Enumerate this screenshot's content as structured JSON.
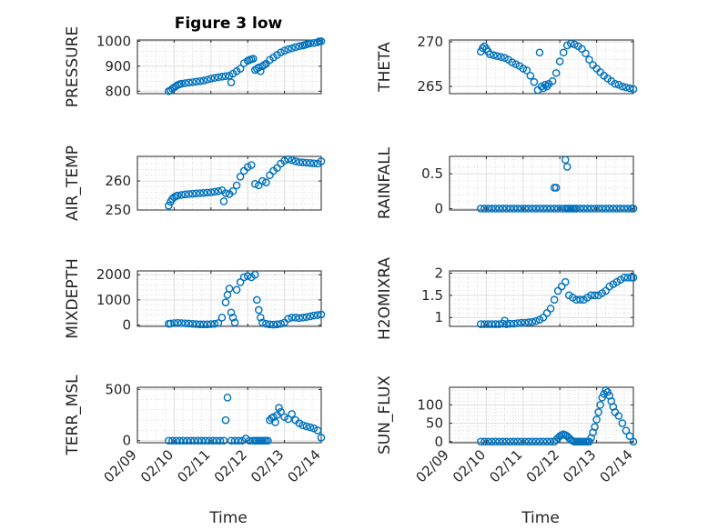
{
  "figure": {
    "title": "Figure 3 low",
    "xlabel": "Time"
  },
  "colors": {
    "marker": "#0072BD",
    "axes": "#262626",
    "grid_major": "#dfdfdf",
    "grid_minor": "#cfcfcf"
  },
  "chart_data": [
    {
      "type": "scatter",
      "ylabel": "PRESSURE",
      "xlim": [
        0,
        5
      ],
      "ylim": [
        790,
        1005
      ],
      "yticks": [
        800,
        900,
        1000
      ],
      "xticklabels": [],
      "x": [
        0.85,
        0.9,
        0.95,
        1.0,
        1.05,
        1.1,
        1.15,
        1.2,
        1.3,
        1.4,
        1.5,
        1.6,
        1.7,
        1.8,
        1.9,
        2.0,
        2.1,
        2.2,
        2.3,
        2.4,
        2.5,
        2.55,
        2.6,
        2.7,
        2.8,
        2.9,
        3.0,
        3.05,
        3.1,
        3.15,
        3.2,
        3.25,
        3.3,
        3.35,
        3.4,
        3.45,
        3.5,
        3.6,
        3.7,
        3.8,
        3.9,
        4.0,
        4.1,
        4.2,
        4.3,
        4.4,
        4.5,
        4.55,
        4.6,
        4.65,
        4.7,
        4.8,
        4.9,
        4.95,
        5.0
      ],
      "y": [
        800,
        803,
        810,
        815,
        820,
        825,
        828,
        830,
        832,
        834,
        836,
        838,
        840,
        842,
        846,
        850,
        853,
        856,
        858,
        860,
        862,
        835,
        870,
        880,
        890,
        912,
        922,
        925,
        928,
        930,
        885,
        890,
        895,
        880,
        900,
        905,
        910,
        925,
        935,
        945,
        955,
        962,
        968,
        972,
        976,
        980,
        983,
        985,
        988,
        990,
        992,
        993,
        996,
        1000,
        1000
      ]
    },
    {
      "type": "scatter",
      "ylabel": "THETA",
      "xlim": [
        0,
        5
      ],
      "ylim": [
        264.2,
        270.2
      ],
      "yticks": [
        265,
        270
      ],
      "xticklabels": [],
      "x": [
        0.85,
        0.9,
        0.95,
        1.0,
        1.05,
        1.1,
        1.2,
        1.3,
        1.4,
        1.5,
        1.6,
        1.7,
        1.8,
        1.9,
        2.0,
        2.1,
        2.2,
        2.3,
        2.4,
        2.45,
        2.5,
        2.55,
        2.6,
        2.65,
        2.7,
        2.8,
        2.9,
        3.0,
        3.1,
        3.2,
        3.3,
        3.4,
        3.5,
        3.6,
        3.7,
        3.8,
        3.9,
        4.0,
        4.1,
        4.2,
        4.3,
        4.4,
        4.5,
        4.6,
        4.7,
        4.8,
        4.9,
        5.0
      ],
      "y": [
        268.9,
        269.3,
        269.5,
        269.2,
        268.9,
        268.6,
        268.5,
        268.4,
        268.3,
        268.2,
        268.0,
        267.7,
        267.5,
        267.3,
        267.0,
        266.8,
        266.2,
        265.5,
        264.6,
        268.8,
        265.0,
        264.8,
        265.2,
        265.0,
        265.3,
        265.6,
        266.5,
        267.8,
        268.8,
        269.6,
        269.8,
        269.7,
        269.5,
        269.2,
        268.7,
        268.0,
        267.4,
        267.0,
        266.6,
        266.2,
        265.9,
        265.6,
        265.3,
        265.2,
        265.0,
        264.9,
        264.8,
        264.7
      ]
    },
    {
      "type": "scatter",
      "ylabel": "AIR_TEMP",
      "xlim": [
        0,
        5
      ],
      "ylim": [
        250,
        268.5
      ],
      "yticks": [
        250,
        260
      ],
      "xticklabels": [],
      "x": [
        0.85,
        0.9,
        0.95,
        1.0,
        1.05,
        1.1,
        1.2,
        1.3,
        1.4,
        1.5,
        1.6,
        1.7,
        1.8,
        1.9,
        2.0,
        2.1,
        2.2,
        2.3,
        2.35,
        2.4,
        2.5,
        2.6,
        2.7,
        2.8,
        2.9,
        3.0,
        3.1,
        3.2,
        3.3,
        3.4,
        3.5,
        3.6,
        3.7,
        3.8,
        3.9,
        4.0,
        4.1,
        4.2,
        4.3,
        4.4,
        4.5,
        4.6,
        4.7,
        4.8,
        4.9,
        5.0
      ],
      "y": [
        251.5,
        252.8,
        253.8,
        254.4,
        254.8,
        255.0,
        255.2,
        255.4,
        255.5,
        255.6,
        255.7,
        255.8,
        255.9,
        256.0,
        256.1,
        256.3,
        256.5,
        256.8,
        253.0,
        255.8,
        255.5,
        256.5,
        258.5,
        261.5,
        263.5,
        264.8,
        265.5,
        259.0,
        258.5,
        260.0,
        259.5,
        262.0,
        263.5,
        264.5,
        266.0,
        267.0,
        267.5,
        267.2,
        266.8,
        266.5,
        266.4,
        266.3,
        266.2,
        266.1,
        266.0,
        266.8
      ]
    },
    {
      "type": "scatter",
      "ylabel": "RAINFALL",
      "xlim": [
        0,
        5
      ],
      "ylim": [
        -0.02,
        0.75
      ],
      "yticks": [
        0,
        0.5
      ],
      "xticklabels": [],
      "x": [
        0.85,
        0.95,
        1.05,
        1.15,
        1.25,
        1.35,
        1.45,
        1.55,
        1.65,
        1.75,
        1.85,
        1.95,
        2.05,
        2.15,
        2.25,
        2.35,
        2.45,
        2.55,
        2.65,
        2.75,
        2.85,
        2.95,
        3.05,
        3.15,
        3.2,
        3.25,
        3.3,
        3.35,
        3.4,
        3.45,
        3.55,
        3.65,
        3.75,
        3.85,
        3.95,
        4.05,
        4.15,
        4.25,
        4.35,
        4.45,
        4.55,
        4.65,
        4.75,
        4.85,
        4.95,
        5.0,
        2.85,
        2.9,
        3.15,
        3.2
      ],
      "y": [
        0,
        0,
        0,
        0,
        0,
        0,
        0,
        0,
        0,
        0,
        0,
        0,
        0,
        0,
        0,
        0,
        0,
        0,
        0,
        0,
        0,
        0,
        0,
        0,
        0,
        0,
        0,
        0,
        0,
        0,
        0,
        0,
        0,
        0,
        0,
        0,
        0,
        0,
        0,
        0,
        0,
        0,
        0,
        0,
        0,
        0,
        0.3,
        0.3,
        0.7,
        0.6
      ]
    },
    {
      "type": "scatter",
      "ylabel": "MIXDEPTH",
      "xlim": [
        0,
        5
      ],
      "ylim": [
        -50,
        2150
      ],
      "yticks": [
        0,
        1000,
        2000
      ],
      "xticklabels": [],
      "x": [
        0.85,
        0.9,
        1.0,
        1.1,
        1.2,
        1.3,
        1.4,
        1.5,
        1.6,
        1.7,
        1.8,
        1.9,
        2.0,
        2.1,
        2.2,
        2.3,
        2.4,
        2.45,
        2.5,
        2.55,
        2.6,
        2.65,
        2.7,
        2.8,
        2.9,
        3.0,
        3.1,
        3.2,
        3.25,
        3.3,
        3.35,
        3.4,
        3.5,
        3.6,
        3.7,
        3.8,
        3.9,
        4.0,
        4.1,
        4.2,
        4.3,
        4.4,
        4.5,
        4.6,
        4.7,
        4.8,
        4.9,
        5.0
      ],
      "y": [
        50,
        60,
        80,
        90,
        80,
        70,
        60,
        50,
        40,
        30,
        30,
        30,
        40,
        50,
        80,
        300,
        900,
        1200,
        1450,
        500,
        300,
        100,
        1400,
        1700,
        1900,
        1950,
        1900,
        2000,
        1000,
        600,
        300,
        100,
        50,
        30,
        20,
        30,
        50,
        100,
        250,
        300,
        300,
        280,
        300,
        320,
        350,
        380,
        400,
        420
      ]
    },
    {
      "type": "scatter",
      "ylabel": "H2OMIXRA",
      "xlim": [
        0,
        5
      ],
      "ylim": [
        0.8,
        2.05
      ],
      "yticks": [
        1,
        1.5,
        2
      ],
      "xticklabels": [],
      "x": [
        0.85,
        0.95,
        1.05,
        1.15,
        1.25,
        1.35,
        1.45,
        1.5,
        1.55,
        1.65,
        1.75,
        1.85,
        1.95,
        2.05,
        2.15,
        2.25,
        2.35,
        2.45,
        2.55,
        2.65,
        2.75,
        2.85,
        2.95,
        3.05,
        3.15,
        3.25,
        3.35,
        3.45,
        3.55,
        3.65,
        3.75,
        3.85,
        3.95,
        4.05,
        4.15,
        4.25,
        4.35,
        4.45,
        4.55,
        4.65,
        4.75,
        4.85,
        4.95,
        5.0
      ],
      "y": [
        0.85,
        0.85,
        0.85,
        0.85,
        0.85,
        0.85,
        0.86,
        0.93,
        0.85,
        0.86,
        0.86,
        0.87,
        0.88,
        0.88,
        0.89,
        0.9,
        0.92,
        0.95,
        1.0,
        1.1,
        1.2,
        1.4,
        1.6,
        1.7,
        1.8,
        1.5,
        1.45,
        1.4,
        1.4,
        1.4,
        1.45,
        1.5,
        1.5,
        1.5,
        1.55,
        1.6,
        1.7,
        1.75,
        1.8,
        1.85,
        1.9,
        1.9,
        1.9,
        1.9
      ]
    },
    {
      "type": "scatter",
      "ylabel": "TERR_MSL",
      "xlim": [
        0,
        5
      ],
      "ylim": [
        -20,
        520
      ],
      "yticks": [
        0,
        500
      ],
      "xticklabels": [
        "02/09",
        "02/10",
        "02/11",
        "02/12",
        "02/13",
        "02/14"
      ],
      "x": [
        0.85,
        0.95,
        1.05,
        1.15,
        1.25,
        1.35,
        1.45,
        1.55,
        1.65,
        1.75,
        1.85,
        1.95,
        2.05,
        2.15,
        2.25,
        2.35,
        2.4,
        2.45,
        2.55,
        2.65,
        2.75,
        2.85,
        2.95,
        3.05,
        3.15,
        3.2,
        3.25,
        3.3,
        3.35,
        3.4,
        3.45,
        3.5,
        3.55,
        3.6,
        3.65,
        3.7,
        3.75,
        3.8,
        3.85,
        3.9,
        4.0,
        4.1,
        4.2,
        4.3,
        4.4,
        4.5,
        4.6,
        4.7,
        4.8,
        4.9,
        5.0
      ],
      "y": [
        0,
        0,
        0,
        0,
        0,
        0,
        0,
        0,
        0,
        0,
        0,
        0,
        0,
        0,
        0,
        0,
        200,
        420,
        0,
        0,
        0,
        0,
        20,
        0,
        0,
        0,
        0,
        0,
        0,
        0,
        0,
        0,
        0,
        200,
        220,
        230,
        180,
        250,
        320,
        280,
        230,
        210,
        260,
        200,
        170,
        150,
        140,
        130,
        120,
        100,
        30
      ]
    },
    {
      "type": "scatter",
      "ylabel": "SUN_FLUX",
      "xlim": [
        0,
        5
      ],
      "ylim": [
        -3,
        148
      ],
      "yticks": [
        0,
        50,
        100
      ],
      "xticklabels": [
        "02/09",
        "02/10",
        "02/11",
        "02/12",
        "02/13",
        "02/14"
      ],
      "x": [
        0.85,
        0.95,
        1.05,
        1.15,
        1.25,
        1.35,
        1.45,
        1.55,
        1.65,
        1.75,
        1.85,
        1.95,
        2.05,
        2.15,
        2.25,
        2.35,
        2.45,
        2.55,
        2.65,
        2.75,
        2.85,
        2.9,
        2.95,
        3.0,
        3.05,
        3.1,
        3.15,
        3.2,
        3.25,
        3.3,
        3.35,
        3.4,
        3.45,
        3.5,
        3.55,
        3.6,
        3.65,
        3.7,
        3.75,
        3.8,
        3.85,
        3.9,
        3.95,
        4.0,
        4.05,
        4.1,
        4.15,
        4.2,
        4.25,
        4.3,
        4.35,
        4.4,
        4.45,
        4.5,
        4.6,
        4.7,
        4.8,
        4.9,
        5.0
      ],
      "y": [
        0,
        0,
        0,
        0,
        0,
        0,
        0,
        0,
        0,
        0,
        0,
        0,
        0,
        0,
        0,
        0,
        0,
        0,
        0,
        0,
        0,
        5,
        10,
        15,
        18,
        20,
        18,
        15,
        10,
        5,
        2,
        0,
        0,
        0,
        0,
        0,
        0,
        0,
        0,
        0,
        10,
        25,
        40,
        60,
        80,
        100,
        120,
        130,
        140,
        135,
        125,
        110,
        95,
        80,
        70,
        50,
        30,
        15,
        0
      ]
    }
  ]
}
